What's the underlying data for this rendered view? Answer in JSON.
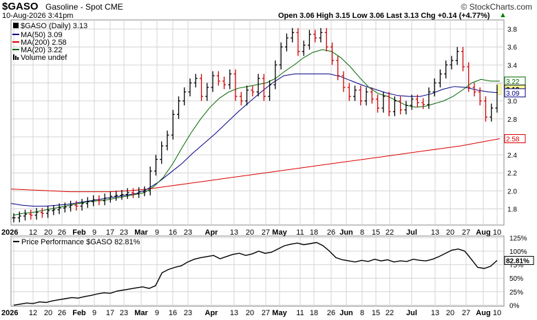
{
  "header": {
    "symbol": "$GASO",
    "name": "Gasoline - Spot CME",
    "credit": "© StockCharts.com",
    "datetime": "10-Aug-2026 3:41pm",
    "quote": "Open 3.06  High 3.15  Low 3.06  Last 3.13  Chg +0.14 (+4.77%)",
    "change_arrow": "up-arrow-icon"
  },
  "colors": {
    "price_up": "#000000",
    "price_down": "#cc0000",
    "ma50": "#000080",
    "ma200": "#dd0000",
    "ma20": "#006600",
    "perf": "#000000",
    "grid": "#d4d4d4",
    "last_marker": "#ffff99"
  },
  "chart_data": [
    {
      "type": "line",
      "title": "$GASO (Daily) 3.13",
      "legend": [
        {
          "label": "MA(50) 3.09",
          "color": "#000080",
          "series": "MA(50)"
        },
        {
          "label": "MA(200) 2.58",
          "color": "#dd0000",
          "series": "MA(200)"
        },
        {
          "label": "MA(20) 3.22",
          "color": "#006600",
          "series": "MA(20)"
        },
        {
          "label": "Volume undef",
          "color": "#000000",
          "series": "Volume"
        }
      ],
      "legend_position": "top-left",
      "grid": true,
      "ylim": [
        1.62,
        3.9
      ],
      "y_ticks": [
        "1.8",
        "2.0",
        "2.2",
        "2.4",
        "2.6",
        "2.8",
        "3.0",
        "3.2",
        "3.4",
        "3.6",
        "3.8"
      ],
      "x_ticks": [
        "2026",
        "12",
        "20",
        "26",
        "Feb",
        "9",
        "17",
        "23",
        "Mar",
        "9",
        "16",
        "23",
        "Apr",
        "13",
        "20",
        "27",
        "May",
        "11",
        "18",
        "26",
        "Jun",
        "8",
        "15",
        "22",
        "Jul",
        "13",
        "20",
        "27",
        "Aug",
        "10"
      ],
      "right_labels": [
        {
          "text": "3.22",
          "value": 3.22,
          "color": "#006600"
        },
        {
          "text": "3.13",
          "value": 3.13,
          "color": "#000000"
        },
        {
          "text": "3.09",
          "value": 3.09,
          "color": "#000080"
        },
        {
          "text": "2.58",
          "value": 2.58,
          "color": "#dd0000"
        }
      ],
      "series": [
        {
          "name": "MA(20)",
          "color": "#006600",
          "values": [
            1.73,
            1.75,
            1.76,
            1.78,
            1.8,
            1.82,
            1.84,
            1.86,
            1.88,
            1.89,
            1.9,
            1.92,
            1.94,
            1.96,
            1.98,
            2.05,
            2.15,
            2.3,
            2.48,
            2.65,
            2.8,
            2.93,
            3.03,
            3.1,
            3.14,
            3.16,
            3.18,
            3.2,
            3.25,
            3.33,
            3.4,
            3.48,
            3.54,
            3.57,
            3.55,
            3.48,
            3.38,
            3.26,
            3.15,
            3.08,
            3.05,
            3.0,
            2.95,
            2.93,
            2.94,
            2.97,
            3.0,
            3.05,
            3.12,
            3.2,
            3.24,
            3.22,
            3.22
          ]
        },
        {
          "name": "MA(50)",
          "color": "#000080",
          "values": [
            1.86,
            1.84,
            1.83,
            1.83,
            1.84,
            1.85,
            1.87,
            1.89,
            1.91,
            1.93,
            1.95,
            1.97,
            2.02,
            2.1,
            2.2,
            2.3,
            2.42,
            2.53,
            2.64,
            2.76,
            2.88,
            2.99,
            3.1,
            3.2,
            3.28,
            3.3,
            3.3,
            3.3,
            3.3,
            3.27,
            3.22,
            3.17,
            3.13,
            3.09,
            3.06,
            3.05,
            3.05,
            3.08,
            3.13,
            3.16,
            3.15,
            3.12,
            3.1,
            3.09
          ]
        },
        {
          "name": "MA(200)",
          "color": "#dd0000",
          "values": [
            2.02,
            2.01,
            2.0,
            1.99,
            1.99,
            1.99,
            2.0,
            2.02,
            2.05,
            2.08,
            2.11,
            2.14,
            2.17,
            2.2,
            2.23,
            2.26,
            2.29,
            2.32,
            2.35,
            2.38,
            2.41,
            2.44,
            2.47,
            2.5,
            2.54,
            2.58
          ]
        }
      ],
      "ohlc_closes": [
        1.7,
        1.72,
        1.74,
        1.73,
        1.76,
        1.75,
        1.78,
        1.79,
        1.81,
        1.82,
        1.84,
        1.83,
        1.86,
        1.88,
        1.9,
        1.89,
        1.92,
        1.94,
        1.95,
        1.96,
        1.98,
        1.97,
        1.99,
        2.0,
        2.22,
        2.35,
        2.5,
        2.62,
        2.85,
        3.0,
        3.1,
        3.2,
        3.25,
        3.05,
        3.15,
        3.28,
        3.22,
        3.18,
        3.3,
        3.05,
        3.0,
        3.12,
        3.1,
        3.25,
        3.05,
        3.18,
        3.4,
        3.6,
        3.7,
        3.76,
        3.55,
        3.62,
        3.74,
        3.7,
        3.76,
        3.6,
        3.45,
        3.28,
        3.15,
        3.05,
        3.12,
        3.0,
        3.1,
        3.02,
        2.92,
        3.05,
        2.88,
        3.0,
        2.9,
        2.95,
        3.02,
        2.98,
        2.96,
        3.1,
        3.2,
        3.3,
        3.4,
        3.45,
        3.55,
        3.38,
        3.15,
        3.1,
        3.0,
        2.82,
        2.92,
        3.13
      ]
    },
    {
      "type": "line",
      "title": "Price Performance $GASO 82.81%",
      "grid": true,
      "ylim": [
        -2,
        128
      ],
      "y_ticks": [
        "0%",
        "25%",
        "50%",
        "75%",
        "100%",
        "125%"
      ],
      "right_labels": [
        {
          "text": "82.81%",
          "value": 82.81,
          "color": "#000000"
        }
      ],
      "series": [
        {
          "name": "Price Performance $GASO",
          "color": "#000000",
          "values": [
            0,
            2,
            4,
            3,
            6,
            5,
            8,
            10,
            12,
            14,
            13,
            16,
            18,
            21,
            23,
            22,
            26,
            28,
            30,
            32,
            34,
            31,
            36,
            60,
            66,
            70,
            73,
            80,
            85,
            88,
            90,
            92,
            86,
            90,
            94,
            96,
            92,
            95,
            100,
            96,
            98,
            104,
            110,
            113,
            115,
            112,
            114,
            116,
            110,
            100,
            88,
            84,
            82,
            80,
            83,
            81,
            85,
            82,
            84,
            80,
            82,
            81,
            85,
            83,
            82,
            85,
            90,
            96,
            102,
            104,
            100,
            85,
            70,
            68,
            72,
            82.81
          ]
        }
      ]
    }
  ]
}
